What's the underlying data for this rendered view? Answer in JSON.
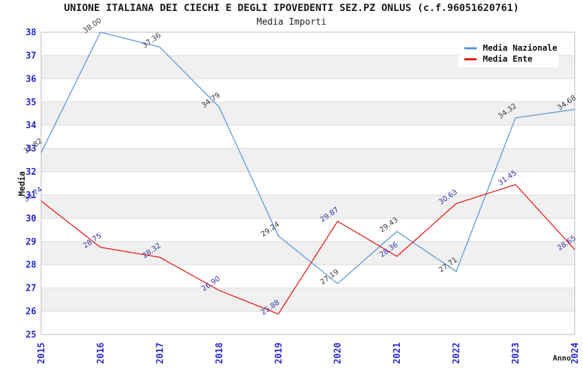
{
  "header": {
    "title": "UNIONE ITALIANA DEI CIECHI E DEGLI IPOVEDENTI SEZ.PZ ONLUS (c.f.96051620761)",
    "subtitle": "Media Importi"
  },
  "legend": {
    "items": [
      {
        "label": "Media Nazionale",
        "color": "#5695D6"
      },
      {
        "label": "Media Ente",
        "color": "#E8150F"
      }
    ]
  },
  "axes": {
    "ylabel": "Media",
    "xlabel": "Anno"
  },
  "chart_data": {
    "type": "line",
    "title": "UNIONE ITALIANA DEI CIECHI E DEGLI IPOVEDENTI SEZ.PZ ONLUS (c.f.96051620761)",
    "subtitle": "Media Importi",
    "xlabel": "Anno",
    "ylabel": "Media",
    "x": [
      "2015",
      "2016",
      "2017",
      "2018",
      "2019",
      "2020",
      "2021",
      "2022",
      "2023",
      "2024"
    ],
    "series": [
      {
        "name": "Media Nazionale",
        "color": "#5695D6",
        "label_color": "#3A3A3A",
        "values": [
          32.82,
          38.0,
          37.36,
          34.79,
          29.24,
          27.19,
          29.43,
          27.71,
          34.32,
          34.68
        ]
      },
      {
        "name": "Media Ente",
        "color": "#E8150F",
        "label_color": "#3333AA",
        "values": [
          30.74,
          28.75,
          28.32,
          26.9,
          25.88,
          29.87,
          28.36,
          30.63,
          31.45,
          28.65
        ]
      }
    ],
    "ylim": [
      25,
      38
    ],
    "yticks": [
      25,
      26,
      27,
      28,
      29,
      30,
      31,
      32,
      33,
      34,
      35,
      36,
      37,
      38
    ],
    "ytick_step": 1,
    "grid": true,
    "band_fill": "#F0F0F0",
    "gridline_color": "#DCDCDC",
    "border_color": "#B8B8B8",
    "axis_tick_color": "#2727CE",
    "legend_position": "top-right"
  }
}
